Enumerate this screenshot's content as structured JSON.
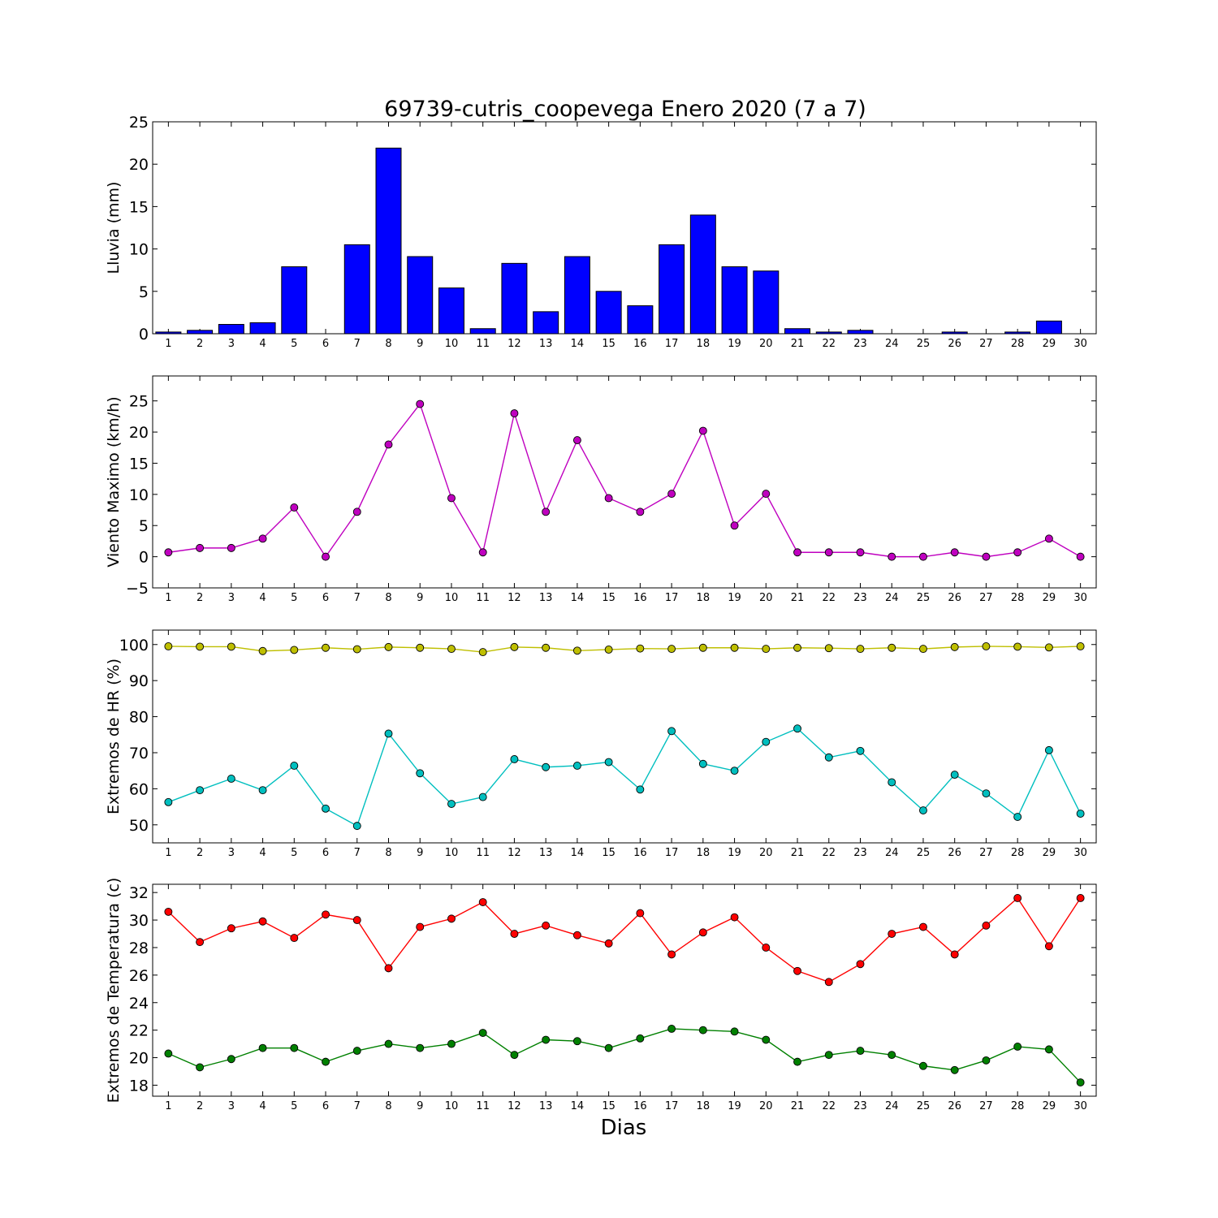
{
  "figure_title": "69739-cutris_coopevega Enero 2020  (7 a 7)",
  "xlabel": "Dias",
  "days": [
    "1",
    "2",
    "3",
    "4",
    "5",
    "6",
    "7",
    "8",
    "9",
    "10",
    "11",
    "12",
    "13",
    "14",
    "15",
    "16",
    "17",
    "18",
    "19",
    "20",
    "21",
    "22",
    "23",
    "24",
    "25",
    "26",
    "27",
    "28",
    "29",
    "30"
  ],
  "chart_data": [
    {
      "type": "bar",
      "ylabel": "Lluvia (mm)",
      "ylim": [
        0,
        25
      ],
      "yticks": [
        0,
        5,
        10,
        15,
        20,
        25
      ],
      "grid": false,
      "series": [
        {
          "color": "#0000ff",
          "values": [
            0.2,
            0.4,
            1.1,
            1.3,
            7.9,
            0.0,
            10.5,
            21.9,
            9.1,
            5.4,
            0.6,
            8.3,
            2.6,
            9.1,
            5.0,
            3.3,
            10.5,
            14.0,
            7.9,
            7.4,
            0.6,
            0.2,
            0.4,
            0.0,
            0.0,
            0.2,
            0.0,
            0.2,
            1.5,
            0.0
          ]
        }
      ]
    },
    {
      "type": "line",
      "ylabel": "Viento Maximo (km/h)",
      "ylim": [
        -5,
        29
      ],
      "yticks": [
        -5,
        0,
        5,
        10,
        15,
        20,
        25
      ],
      "grid": false,
      "series": [
        {
          "color": "#bf00bf",
          "values": [
            0.7,
            1.4,
            1.4,
            2.9,
            7.9,
            0.0,
            7.2,
            18.0,
            24.5,
            9.4,
            0.7,
            23.0,
            7.2,
            18.7,
            9.4,
            7.2,
            10.1,
            20.2,
            5.0,
            10.1,
            0.7,
            0.7,
            0.7,
            0.0,
            0.0,
            0.7,
            0.0,
            0.7,
            2.9,
            0.0
          ]
        }
      ]
    },
    {
      "type": "line",
      "ylabel": "Extremos de HR (%)",
      "ylim": [
        45,
        104
      ],
      "yticks": [
        50,
        60,
        70,
        80,
        90,
        100
      ],
      "grid": false,
      "series": [
        {
          "color": "#bfbf00",
          "values": [
            99.5,
            99.4,
            99.4,
            98.2,
            98.5,
            99.1,
            98.7,
            99.3,
            99.1,
            98.8,
            97.9,
            99.3,
            99.1,
            98.3,
            98.6,
            98.9,
            98.8,
            99.1,
            99.1,
            98.8,
            99.1,
            99.0,
            98.8,
            99.1,
            98.8,
            99.3,
            99.5,
            99.4,
            99.2,
            99.5
          ]
        },
        {
          "color": "#00bfbf",
          "values": [
            56.3,
            59.6,
            62.8,
            59.6,
            66.4,
            54.5,
            49.7,
            75.3,
            64.3,
            55.8,
            57.7,
            68.2,
            66.0,
            66.4,
            67.4,
            59.8,
            76.0,
            66.9,
            65.0,
            73.0,
            76.7,
            68.7,
            70.5,
            61.8,
            54.0,
            63.9,
            58.7,
            52.2,
            70.7,
            53.1
          ]
        }
      ]
    },
    {
      "type": "line",
      "ylabel": "Extremos de Temperatura (c)",
      "ylim": [
        17.2,
        32.6
      ],
      "yticks": [
        18,
        20,
        22,
        24,
        26,
        28,
        30,
        32
      ],
      "grid": false,
      "series": [
        {
          "color": "#ff0000",
          "values": [
            30.6,
            28.4,
            29.4,
            29.9,
            28.7,
            30.4,
            30.0,
            26.5,
            29.5,
            30.1,
            31.3,
            29.0,
            29.6,
            28.9,
            28.3,
            30.5,
            27.5,
            29.1,
            30.2,
            28.0,
            26.3,
            25.5,
            26.8,
            29.0,
            29.5,
            27.5,
            29.6,
            31.6,
            28.1,
            31.6
          ]
        },
        {
          "color": "#008000",
          "values": [
            20.3,
            19.3,
            19.9,
            20.7,
            20.7,
            19.7,
            20.5,
            21.0,
            20.7,
            21.0,
            21.8,
            20.2,
            21.3,
            21.2,
            20.7,
            21.4,
            22.1,
            22.0,
            21.9,
            21.3,
            19.7,
            20.2,
            20.5,
            20.2,
            19.4,
            19.1,
            19.8,
            20.8,
            20.6,
            18.2
          ]
        }
      ]
    }
  ]
}
